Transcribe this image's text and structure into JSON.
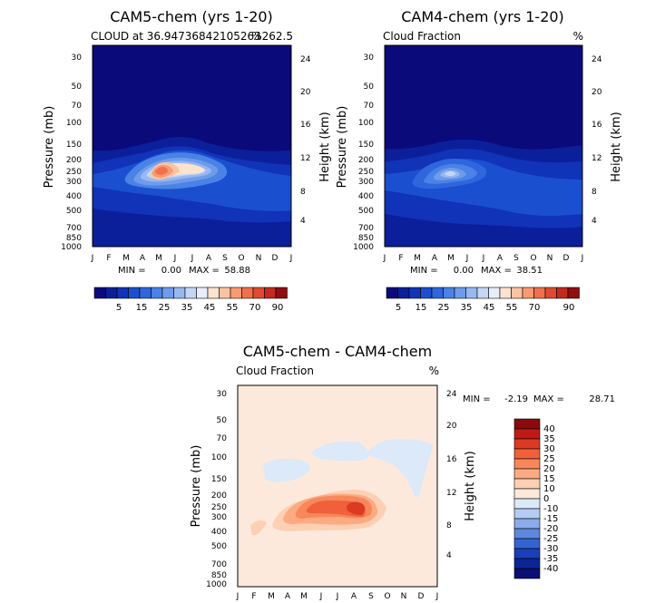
{
  "chart_data": [
    {
      "type": "contour",
      "title": "CAM5-chem (yrs 1-20)",
      "subtitle": "CLOUD at 36.94736842105263",
      "subtitle_right": "%262.5",
      "ylabel": "Pressure (mb)",
      "y2label": "Height (km)",
      "months": [
        "J",
        "F",
        "M",
        "A",
        "M",
        "J",
        "J",
        "A",
        "S",
        "O",
        "N",
        "D",
        "J"
      ],
      "pressure_ticks": [
        "30",
        "50",
        "70",
        "100",
        "150",
        "200",
        "250",
        "300",
        "400",
        "500",
        "700",
        "850",
        "1000"
      ],
      "height_ticks": [
        "24",
        "20",
        "16",
        "12",
        "8",
        "4"
      ],
      "min_text": "MIN =",
      "min_value": "0.00",
      "max_text": "MAX =",
      "max_value": "58.88",
      "colorbar_labels": [
        "5",
        "15",
        "25",
        "35",
        "45",
        "55",
        "70",
        "90"
      ]
    },
    {
      "type": "contour",
      "title": "CAM4-chem (yrs 1-20)",
      "subtitle": "Cloud Fraction",
      "subtitle_right": "%",
      "ylabel": "Pressure (mb)",
      "y2label": "Height (km)",
      "months": [
        "J",
        "F",
        "M",
        "A",
        "M",
        "J",
        "J",
        "A",
        "S",
        "O",
        "N",
        "D",
        "J"
      ],
      "pressure_ticks": [
        "30",
        "50",
        "70",
        "100",
        "150",
        "200",
        "250",
        "300",
        "400",
        "500",
        "700",
        "850",
        "1000"
      ],
      "height_ticks": [
        "24",
        "20",
        "16",
        "12",
        "8",
        "4"
      ],
      "min_text": "MIN =",
      "min_value": "0.00",
      "max_text": "MAX =",
      "max_value": "38.51",
      "colorbar_labels": [
        "5",
        "15",
        "25",
        "35",
        "45",
        "55",
        "70",
        "90"
      ]
    },
    {
      "type": "contour",
      "title": "CAM5-chem - CAM4-chem",
      "subtitle": "Cloud Fraction",
      "subtitle_right": "%",
      "ylabel": "Pressure (mb)",
      "y2label": "Height (km)",
      "months": [
        "J",
        "F",
        "M",
        "A",
        "M",
        "J",
        "J",
        "A",
        "S",
        "O",
        "N",
        "D",
        "J"
      ],
      "pressure_ticks": [
        "30",
        "50",
        "70",
        "100",
        "150",
        "200",
        "250",
        "300",
        "400",
        "500",
        "700",
        "850",
        "1000"
      ],
      "height_ticks": [
        "24",
        "20",
        "16",
        "12",
        "8",
        "4"
      ],
      "min_text": "MIN =",
      "min_value": "-2.19",
      "max_text": "MAX =",
      "max_value": "28.71",
      "colorbar_labels": [
        "40",
        "35",
        "30",
        "25",
        "20",
        "15",
        "10",
        "0",
        "-10",
        "-15",
        "-20",
        "-25",
        "-30",
        "-35",
        "-40"
      ]
    }
  ],
  "colors": {
    "abs_scale": [
      "#0a0a7a",
      "#0c1f9a",
      "#1033b8",
      "#1a4fd0",
      "#2f66dd",
      "#4a82e6",
      "#6e9cec",
      "#98b8f1",
      "#c3d6f6",
      "#e6eefb",
      "#fde3cf",
      "#fbc3a2",
      "#f89a72",
      "#f1704c",
      "#e04a2f",
      "#c22a1e",
      "#8f0f10"
    ],
    "diff_scale": [
      "#8b0a0a",
      "#c01a14",
      "#dc3a22",
      "#f0603a",
      "#f8875a",
      "#fbaa82",
      "#fdd0b4",
      "#fde9db",
      "#dbe9f9",
      "#b4ccf2",
      "#8aacea",
      "#5d88de",
      "#3563d1",
      "#1b3fb6",
      "#0c2596",
      "#0a0f73"
    ]
  }
}
